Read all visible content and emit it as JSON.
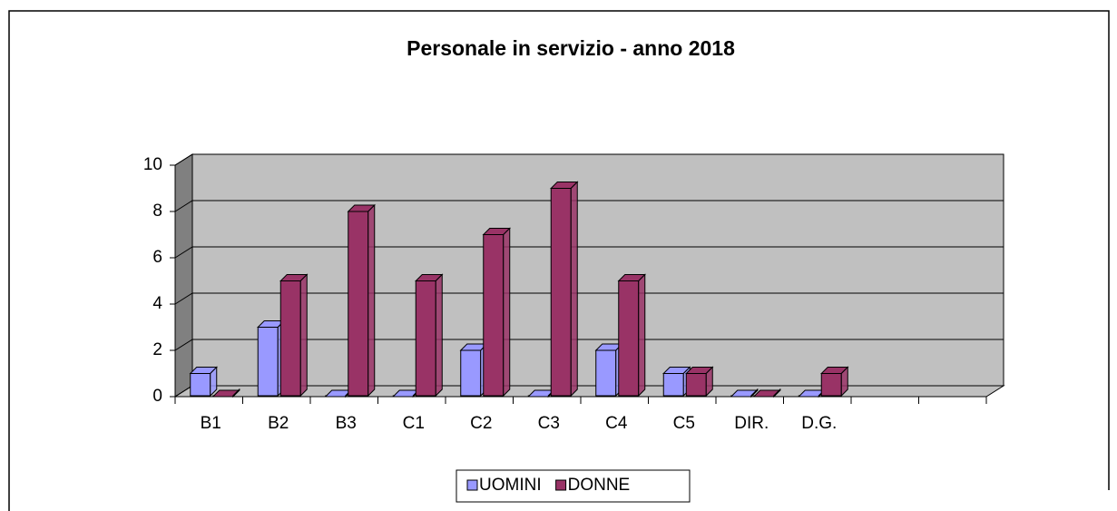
{
  "chart_data": {
    "type": "bar3d",
    "title": "Personale in servizio - anno 2018",
    "categories": [
      "B1",
      "B2",
      "B3",
      "C1",
      "C2",
      "C3",
      "C4",
      "C5",
      "DIR.",
      "D.G.",
      null,
      null
    ],
    "series": [
      {
        "name": "UOMINI",
        "color": "#9999ff",
        "values": [
          1,
          3,
          0,
          0,
          2,
          0,
          2,
          1,
          0,
          0,
          null,
          null
        ]
      },
      {
        "name": "DONNE",
        "color": "#993366",
        "values": [
          0,
          5,
          8,
          5,
          7,
          9,
          5,
          1,
          0,
          1,
          null,
          null
        ]
      }
    ],
    "ylim": [
      0,
      10
    ],
    "yticks": [
      0,
      2,
      4,
      6,
      8,
      10
    ],
    "grid": true,
    "legend": "bottom"
  }
}
